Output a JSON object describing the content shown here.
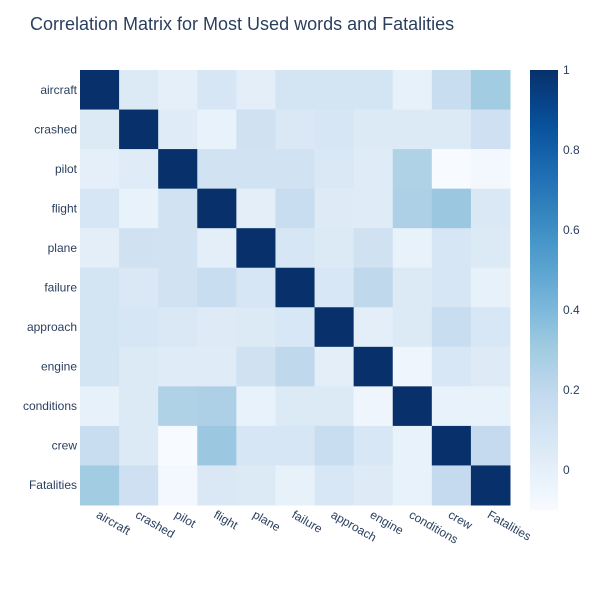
{
  "chart_data": {
    "type": "heatmap",
    "title": "Correlation Matrix for Most Used words and Fatalities",
    "xlabel": "",
    "ylabel": "",
    "x_categories": [
      "aircraft",
      "crashed",
      "pilot",
      "flight",
      "plane",
      "failure",
      "approach",
      "engine",
      "conditions",
      "crew",
      "Fatalities"
    ],
    "y_categories": [
      "aircraft",
      "crashed",
      "pilot",
      "flight",
      "plane",
      "failure",
      "approach",
      "engine",
      "conditions",
      "crew",
      "Fatalities"
    ],
    "values": [
      [
        1.0,
        0.05,
        0.0,
        0.08,
        0.01,
        0.1,
        0.1,
        0.1,
        -0.01,
        0.16,
        0.3
      ],
      [
        0.05,
        1.0,
        0.03,
        -0.02,
        0.12,
        0.06,
        0.08,
        0.05,
        0.05,
        0.05,
        0.13
      ],
      [
        0.0,
        0.03,
        1.0,
        0.11,
        0.11,
        0.11,
        0.06,
        0.03,
        0.25,
        -0.1,
        -0.07
      ],
      [
        0.08,
        -0.02,
        0.11,
        1.0,
        0.01,
        0.16,
        0.04,
        0.03,
        0.26,
        0.32,
        0.06
      ],
      [
        0.01,
        0.12,
        0.11,
        0.01,
        1.0,
        0.08,
        0.05,
        0.12,
        -0.02,
        0.08,
        0.05
      ],
      [
        0.1,
        0.06,
        0.11,
        0.16,
        0.08,
        1.0,
        0.07,
        0.2,
        0.05,
        0.08,
        -0.01
      ],
      [
        0.1,
        0.08,
        0.06,
        0.04,
        0.05,
        0.07,
        1.0,
        0.01,
        0.05,
        0.16,
        0.07
      ],
      [
        0.1,
        0.05,
        0.03,
        0.03,
        0.12,
        0.2,
        0.01,
        1.0,
        -0.05,
        0.07,
        0.04
      ],
      [
        -0.01,
        0.05,
        0.25,
        0.26,
        -0.02,
        0.05,
        0.05,
        -0.05,
        1.0,
        -0.02,
        -0.02
      ],
      [
        0.16,
        0.05,
        -0.1,
        0.32,
        0.08,
        0.08,
        0.16,
        0.07,
        -0.02,
        1.0,
        0.18
      ],
      [
        0.3,
        0.13,
        -0.07,
        0.06,
        0.05,
        -0.01,
        0.07,
        0.04,
        -0.02,
        0.18,
        1.0
      ]
    ],
    "zrange": [
      -0.1,
      1.0
    ],
    "colorbar": {
      "ticks": [
        0,
        0.2,
        0.4,
        0.6,
        0.8,
        1
      ],
      "tick_labels": [
        "0",
        "0.2",
        "0.4",
        "0.6",
        "0.8",
        "1"
      ]
    },
    "colorscale": [
      [
        0.0,
        "#f7fbff"
      ],
      [
        0.125,
        "#deebf7"
      ],
      [
        0.25,
        "#c6dbef"
      ],
      [
        0.375,
        "#9ecae1"
      ],
      [
        0.5,
        "#6baed6"
      ],
      [
        0.625,
        "#4292c6"
      ],
      [
        0.75,
        "#2171b5"
      ],
      [
        0.875,
        "#08519c"
      ],
      [
        1.0,
        "#08306b"
      ]
    ],
    "text_color": "#2a3f5f",
    "grid": false
  }
}
